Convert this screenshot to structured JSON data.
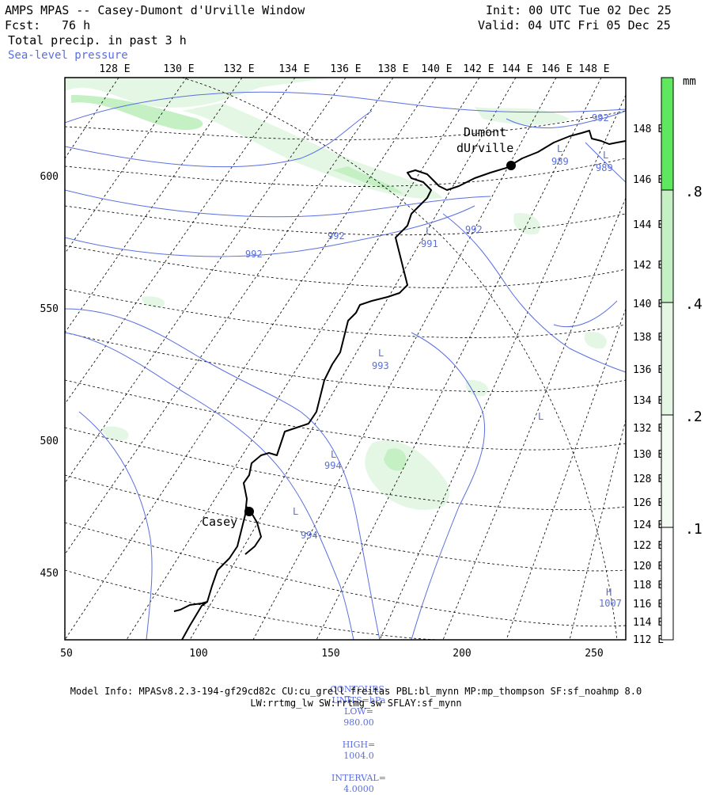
{
  "header": {
    "title": "AMPS MPAS -- Casey-Dumont d'Urville Window",
    "init": "Init: 00 UTC Tue 02 Dec 25",
    "fcst_label": "Fcst:",
    "fcst_value": "76 h",
    "valid": "Valid: 04 UTC Fri 05 Dec 25",
    "field": "Total precip. in past 3 h",
    "overlay": "Sea-level pressure"
  },
  "colors": {
    "contour": "#5a6fe0",
    "precip_light": "#e4f7e4",
    "precip_mid": "#c4f0c4",
    "precip_strong": "#5ee85e",
    "grid": "#000000",
    "coast": "#000000"
  },
  "top_lon_labels": [
    "128 E",
    "130 E",
    "132 E",
    "134 E",
    "136 E",
    "138 E",
    "140 E",
    "142 E",
    "144 E",
    "146 E",
    "148 E"
  ],
  "right_lon_labels": [
    "148 E",
    "146 E",
    "144 E",
    "142 E",
    "140 E",
    "138 E",
    "136 E",
    "134 E",
    "132 E",
    "130 E",
    "128 E",
    "126 E",
    "124 E",
    "122 E",
    "120 E",
    "118 E",
    "116 E",
    "114 E",
    "112 E"
  ],
  "x_axis_labels": [
    "50",
    "100",
    "150",
    "200",
    "250"
  ],
  "y_axis_labels": [
    "600",
    "550",
    "500",
    "450"
  ],
  "stations": [
    {
      "name_line1": "Dumont",
      "name_line2": "dUrville"
    },
    {
      "name_line1": "Casey",
      "name_line2": ""
    }
  ],
  "pressure_labels": [
    {
      "text": "992"
    },
    {
      "text": "992"
    },
    {
      "text": "992"
    },
    {
      "text": "992"
    },
    {
      "text": "989"
    },
    {
      "text": "989"
    },
    {
      "text": "991"
    },
    {
      "text": "993"
    },
    {
      "text": "994"
    },
    {
      "text": "994"
    },
    {
      "text": "1007"
    }
  ],
  "centers": [
    "L",
    "L",
    "L",
    "L",
    "L",
    "L",
    "L",
    "H"
  ],
  "colorbar": {
    "unit": "mm",
    "ticks": [
      ".8",
      ".4",
      ".2",
      ".1"
    ]
  },
  "footer": {
    "contours_label": "CONTOURS:",
    "units": "UNITS=hPa",
    "low": "LOW=",
    "low_val": "980.00",
    "high": "HIGH=",
    "high_val": "1004.0",
    "interval": "INTERVAL=",
    "interval_val": "4.0000",
    "model_info": "Model Info: MPASv8.2.3-194-gf29cd82c CU:cu_grell_freitas PBL:bl_mynn MP:mp_thompson SF:sf_noahmp 8.0",
    "model_info2": "LW:rrtmg_lw SW:rrtmg_sw SFLAY:sf_mynn"
  }
}
